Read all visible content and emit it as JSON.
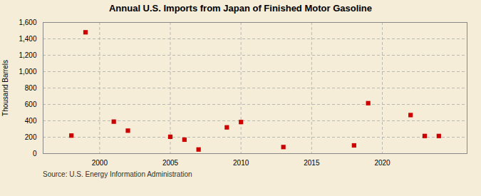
{
  "chart_data": {
    "type": "scatter",
    "title": "Annual U.S. Imports from Japan of Finished Motor Gasoline",
    "ylabel": "Thousand Barrels",
    "annotations": [
      "Source: U.S. Energy Information Administration"
    ],
    "x": [
      1998,
      1999,
      2001,
      2002,
      2005,
      2006,
      2007,
      2009,
      2010,
      2013,
      2018,
      2019,
      2022,
      2023,
      2024
    ],
    "values": [
      220,
      1480,
      390,
      280,
      205,
      170,
      50,
      320,
      385,
      80,
      100,
      615,
      470,
      215,
      215
    ],
    "color": "#cc0000",
    "marker": "square",
    "xlim": [
      1996,
      2026
    ],
    "xticks": [
      2000,
      2005,
      2010,
      2015,
      2020
    ],
    "ylim": [
      0,
      1600
    ],
    "yticks": [
      0,
      200,
      400,
      600,
      800,
      {
        "value": 1000,
        "label": "1,000"
      },
      {
        "value": 1200,
        "label": "1,200"
      },
      {
        "value": 1400,
        "label": "1,400"
      },
      {
        "value": 1600,
        "label": "1,600"
      }
    ],
    "grid": true
  }
}
